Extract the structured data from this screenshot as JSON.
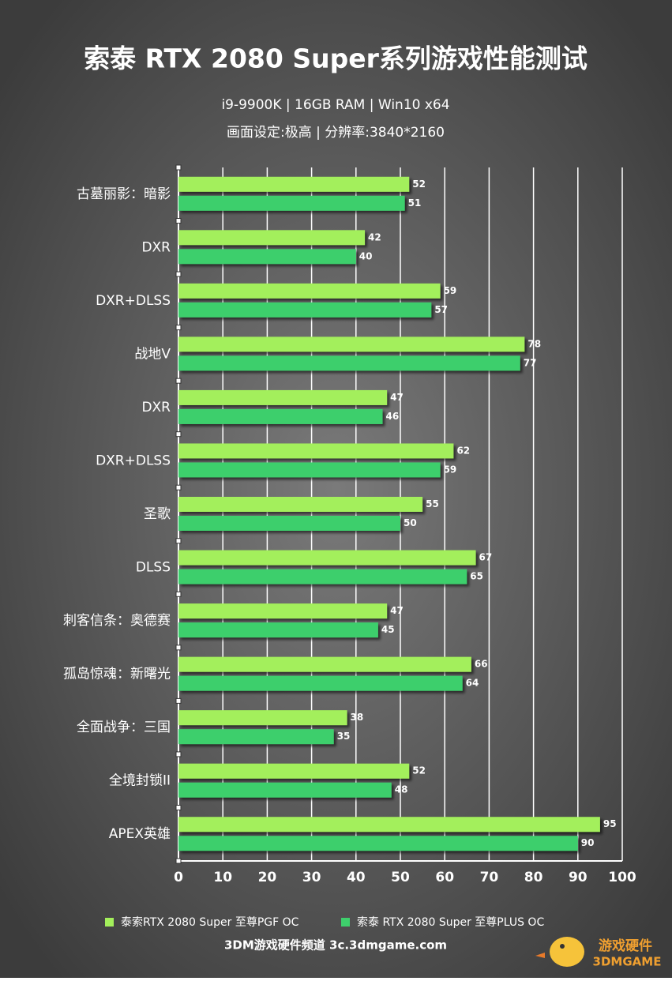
{
  "chart_data": {
    "type": "barh",
    "title": "索泰 RTX 2080 Super系列游戏性能测试",
    "subtitle": [
      "i9-9900K | 16GB RAM | Win10 x64",
      "画面设定:极高 | 分辨率:3840*2160"
    ],
    "categories": [
      "古墓丽影：暗影",
      "DXR",
      "DXR+DLSS",
      "战地V",
      "DXR",
      "DXR+DLSS",
      "圣歌",
      "DLSS",
      "刺客信条：奥德赛",
      "孤岛惊魂：新曙光",
      "全面战争：三国",
      "全境封锁II",
      "APEX英雄"
    ],
    "series": [
      {
        "name": "泰索RTX 2080 Super 至尊PGF OC",
        "color": "#a3ef5b",
        "values": [
          52,
          42,
          59,
          78,
          47,
          62,
          55,
          67,
          47,
          66,
          38,
          52,
          95
        ]
      },
      {
        "name": "索泰 RTX 2080 Super 至尊PLUS OC",
        "color": "#3ecf6c",
        "values": [
          51,
          40,
          57,
          77,
          46,
          59,
          50,
          65,
          45,
          64,
          35,
          48,
          90
        ]
      }
    ],
    "xlim": [
      0,
      100
    ],
    "xticks": [
      0,
      10,
      20,
      30,
      40,
      50,
      60,
      70,
      80,
      90,
      100
    ],
    "grid": true,
    "legend": "bottom",
    "footer": "3DM游戏硬件频道 3c.3dmgame.com",
    "watermark": [
      "游戏硬件",
      "3DMGAME"
    ]
  }
}
